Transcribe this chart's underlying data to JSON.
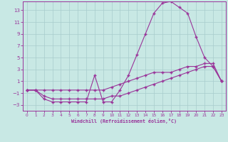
{
  "bg_color": "#c8e8e4",
  "grid_color": "#a8cccc",
  "line_color": "#993399",
  "xlim": [
    -0.5,
    23.5
  ],
  "ylim": [
    -4.0,
    14.5
  ],
  "xticks": [
    0,
    1,
    2,
    3,
    4,
    5,
    6,
    7,
    8,
    9,
    10,
    11,
    12,
    13,
    14,
    15,
    16,
    17,
    18,
    19,
    20,
    21,
    22,
    23
  ],
  "yticks": [
    -3,
    -1,
    1,
    3,
    5,
    7,
    9,
    11,
    13
  ],
  "xlabel": "Windchill (Refroidissement éolien,°C)",
  "line1_x": [
    0,
    1,
    2,
    3,
    4,
    5,
    6,
    7,
    8,
    9,
    10,
    11,
    12,
    13,
    14,
    15,
    16,
    17,
    18,
    19,
    20,
    21,
    22,
    23
  ],
  "line1_y": [
    -0.5,
    -0.5,
    -2.0,
    -2.5,
    -2.5,
    -2.5,
    -2.5,
    -2.5,
    2.0,
    -2.5,
    -2.5,
    -0.5,
    2.0,
    5.5,
    9.0,
    12.5,
    14.2,
    14.5,
    13.5,
    12.5,
    8.5,
    5.0,
    3.5,
    1.0
  ],
  "line2_x": [
    0,
    1,
    2,
    3,
    4,
    5,
    6,
    7,
    8,
    9,
    10,
    11,
    12,
    13,
    14,
    15,
    16,
    17,
    18,
    19,
    20,
    21,
    22,
    23
  ],
  "line2_y": [
    -0.5,
    -0.5,
    -0.5,
    -0.5,
    -0.5,
    -0.5,
    -0.5,
    -0.5,
    -0.5,
    -0.5,
    0.0,
    0.5,
    1.0,
    1.5,
    2.0,
    2.5,
    2.5,
    2.5,
    3.0,
    3.5,
    3.5,
    4.0,
    4.0,
    1.0
  ],
  "line3_x": [
    0,
    1,
    2,
    3,
    4,
    5,
    6,
    7,
    8,
    9,
    10,
    11,
    12,
    13,
    14,
    15,
    16,
    17,
    18,
    19,
    20,
    21,
    22,
    23
  ],
  "line3_y": [
    -0.5,
    -0.5,
    -1.5,
    -2.0,
    -2.0,
    -2.0,
    -2.0,
    -2.0,
    -2.0,
    -2.0,
    -1.5,
    -1.5,
    -1.0,
    -0.5,
    0.0,
    0.5,
    1.0,
    1.5,
    2.0,
    2.5,
    3.0,
    3.5,
    3.5,
    1.0
  ]
}
